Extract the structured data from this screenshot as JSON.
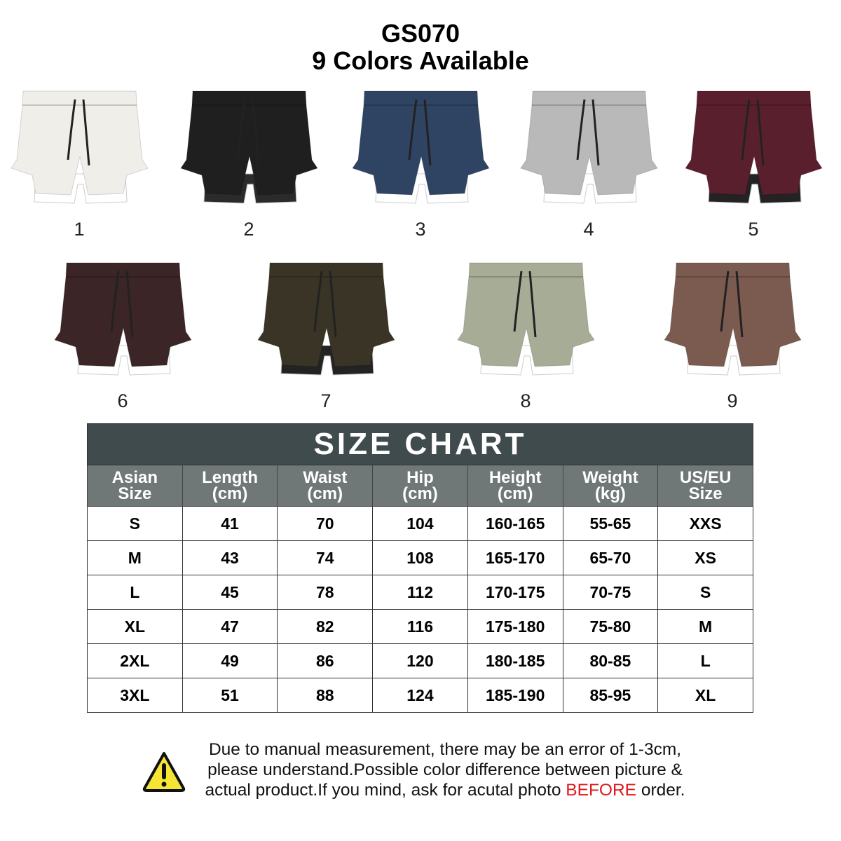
{
  "header": {
    "model": "GS070",
    "subtitle": "9 Colors Available"
  },
  "colors": [
    {
      "label": "1",
      "color": "#f0eee9",
      "liner": "#ffffff"
    },
    {
      "label": "2",
      "color": "#1f1f1f",
      "liner": "#2b2b2b"
    },
    {
      "label": "3",
      "color": "#2f4463",
      "liner": "#ffffff"
    },
    {
      "label": "4",
      "color": "#b9b9b9",
      "liner": "#ffffff"
    },
    {
      "label": "5",
      "color": "#5a1f2c",
      "liner": "#232323"
    },
    {
      "label": "6",
      "color": "#3b2527",
      "liner": "#ffffff"
    },
    {
      "label": "7",
      "color": "#3a3427",
      "liner": "#232323"
    },
    {
      "label": "8",
      "color": "#a6ac96",
      "liner": "#ffffff"
    },
    {
      "label": "9",
      "color": "#7b5b4f",
      "liner": "#ffffff"
    }
  ],
  "size_chart": {
    "title": "SIZE CHART",
    "columns": [
      [
        "Asian",
        "Size"
      ],
      [
        "Length",
        "(cm)"
      ],
      [
        "Waist",
        "(cm)"
      ],
      [
        "Hip",
        "(cm)"
      ],
      [
        "Height",
        "(cm)"
      ],
      [
        "Weight",
        "(kg)"
      ],
      [
        "US/EU",
        "Size"
      ]
    ],
    "rows": [
      [
        "S",
        "41",
        "70",
        "104",
        "160-165",
        "55-65",
        "XXS"
      ],
      [
        "M",
        "43",
        "74",
        "108",
        "165-170",
        "65-70",
        "XS"
      ],
      [
        "L",
        "45",
        "78",
        "112",
        "170-175",
        "70-75",
        "S"
      ],
      [
        "XL",
        "47",
        "82",
        "116",
        "175-180",
        "75-80",
        "M"
      ],
      [
        "2XL",
        "49",
        "86",
        "120",
        "180-185",
        "80-85",
        "L"
      ],
      [
        "3XL",
        "51",
        "88",
        "124",
        "185-190",
        "85-95",
        "XL"
      ]
    ],
    "header_color": "#3f4b4d",
    "column_header_color": "#6f7777"
  },
  "notice": {
    "icon": "warning-icon",
    "line1": "Due to manual measurement, there may be an error of 1-3cm,",
    "line2": "please understand.Possible color difference between picture &",
    "line3_pre": "actual product.If you mind, ask for acutal photo ",
    "line3_highlight": "BEFORE",
    "line3_post": " order.",
    "highlight_color": "#e0191c"
  }
}
